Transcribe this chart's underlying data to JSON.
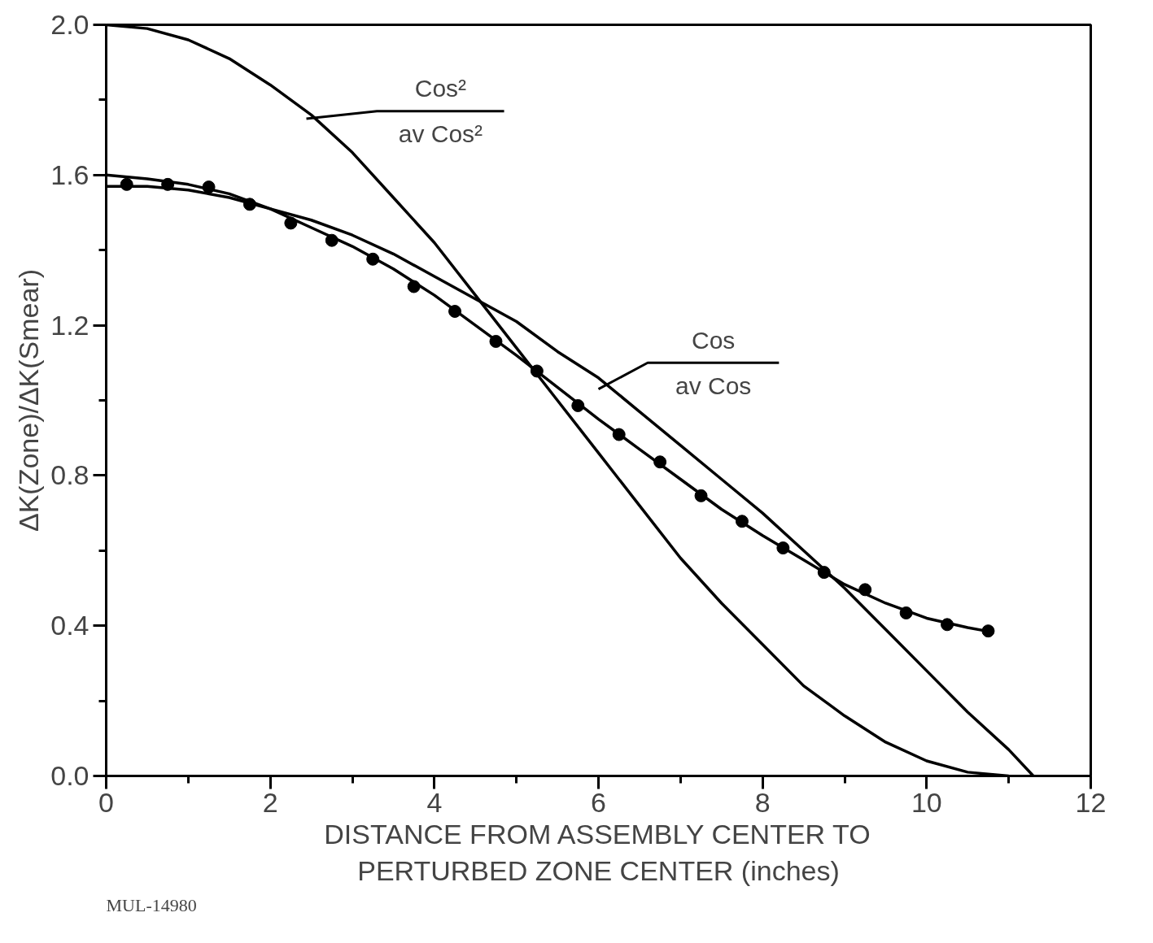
{
  "chart_data": {
    "type": "line",
    "xlabel": "DISTANCE FROM ASSEMBLY CENTER TO\nPERTURBED ZONE CENTER (inches)",
    "ylabel": "ΔK(Zone)/ΔK(Smear)",
    "xlim": [
      0,
      12
    ],
    "ylim": [
      0,
      2.0
    ],
    "xticks": [
      0,
      {
        "value": 1,
        "label": null
      },
      2,
      {
        "value": 3,
        "label": null
      },
      4,
      {
        "value": 5,
        "label": null
      },
      6,
      {
        "value": 7,
        "label": null
      },
      8,
      {
        "value": 9,
        "label": null
      },
      10,
      {
        "value": 11,
        "label": null
      },
      12
    ],
    "yticks": [
      {
        "value": 0,
        "label": "0.0"
      },
      {
        "value": 0.2,
        "label": null
      },
      0.4,
      {
        "value": 0.6,
        "label": null
      },
      0.8,
      {
        "value": 1.0,
        "label": null
      },
      1.2,
      {
        "value": 1.4,
        "label": null
      },
      1.6,
      {
        "value": 1.8,
        "label": null
      },
      {
        "value": 2.0,
        "label": "2.0"
      }
    ],
    "grid": false,
    "series": [
      {
        "color": "#000000",
        "x": [
          0,
          0.5,
          1,
          1.5,
          2,
          2.5,
          3,
          3.5,
          4,
          4.5,
          5,
          5.5,
          6,
          6.5,
          7,
          7.5,
          8,
          8.5,
          9,
          9.5,
          10,
          10.5,
          11
        ],
        "values": [
          2.0,
          1.99,
          1.96,
          1.91,
          1.84,
          1.76,
          1.66,
          1.54,
          1.42,
          1.28,
          1.14,
          1.0,
          0.86,
          0.72,
          0.58,
          0.46,
          0.35,
          0.24,
          0.16,
          0.09,
          0.04,
          0.01,
          0.0
        ]
      },
      {
        "color": "#000000",
        "x": [
          0,
          0.5,
          1,
          1.5,
          2,
          2.5,
          3,
          3.5,
          4,
          4.5,
          5,
          5.5,
          6,
          6.5,
          7,
          7.5,
          8,
          8.5,
          9,
          9.5,
          10,
          10.5,
          11,
          11.3
        ],
        "values": [
          1.57,
          1.57,
          1.56,
          1.54,
          1.51,
          1.48,
          1.44,
          1.39,
          1.33,
          1.27,
          1.21,
          1.13,
          1.06,
          0.97,
          0.88,
          0.79,
          0.7,
          0.6,
          0.5,
          0.39,
          0.28,
          0.17,
          0.07,
          0.0
        ]
      },
      {
        "color": "#000000",
        "x": [
          0,
          0.5,
          1,
          1.5,
          2,
          2.5,
          3,
          3.5,
          4,
          4.5,
          5,
          5.5,
          6,
          6.5,
          7,
          7.5,
          8,
          8.5,
          9,
          9.5,
          10,
          10.5,
          10.75
        ],
        "values": [
          1.6,
          1.59,
          1.575,
          1.55,
          1.51,
          1.46,
          1.41,
          1.35,
          1.28,
          1.2,
          1.12,
          1.035,
          0.95,
          0.87,
          0.79,
          0.71,
          0.64,
          0.575,
          0.51,
          0.46,
          0.42,
          0.395,
          0.385
        ]
      },
      {
        "type": "scatter",
        "marker": "circle",
        "color": "#000000",
        "x": [
          0.25,
          0.75,
          1.25,
          1.75,
          2.25,
          2.75,
          3.25,
          3.75,
          4.25,
          4.75,
          5.25,
          5.75,
          6.25,
          6.75,
          7.25,
          7.75,
          8.25,
          8.75,
          9.25,
          9.75,
          10.25,
          10.75
        ],
        "values": [
          1.575,
          1.575,
          1.568,
          1.522,
          1.472,
          1.426,
          1.376,
          1.303,
          1.237,
          1.157,
          1.078,
          0.986,
          0.909,
          0.836,
          0.746,
          0.678,
          0.607,
          0.542,
          0.496,
          0.434,
          0.403,
          0.386
        ]
      }
    ],
    "annotations": [
      "Cos²",
      "av Cos²",
      "Cos",
      "av Cos",
      "MUL-14980"
    ]
  }
}
